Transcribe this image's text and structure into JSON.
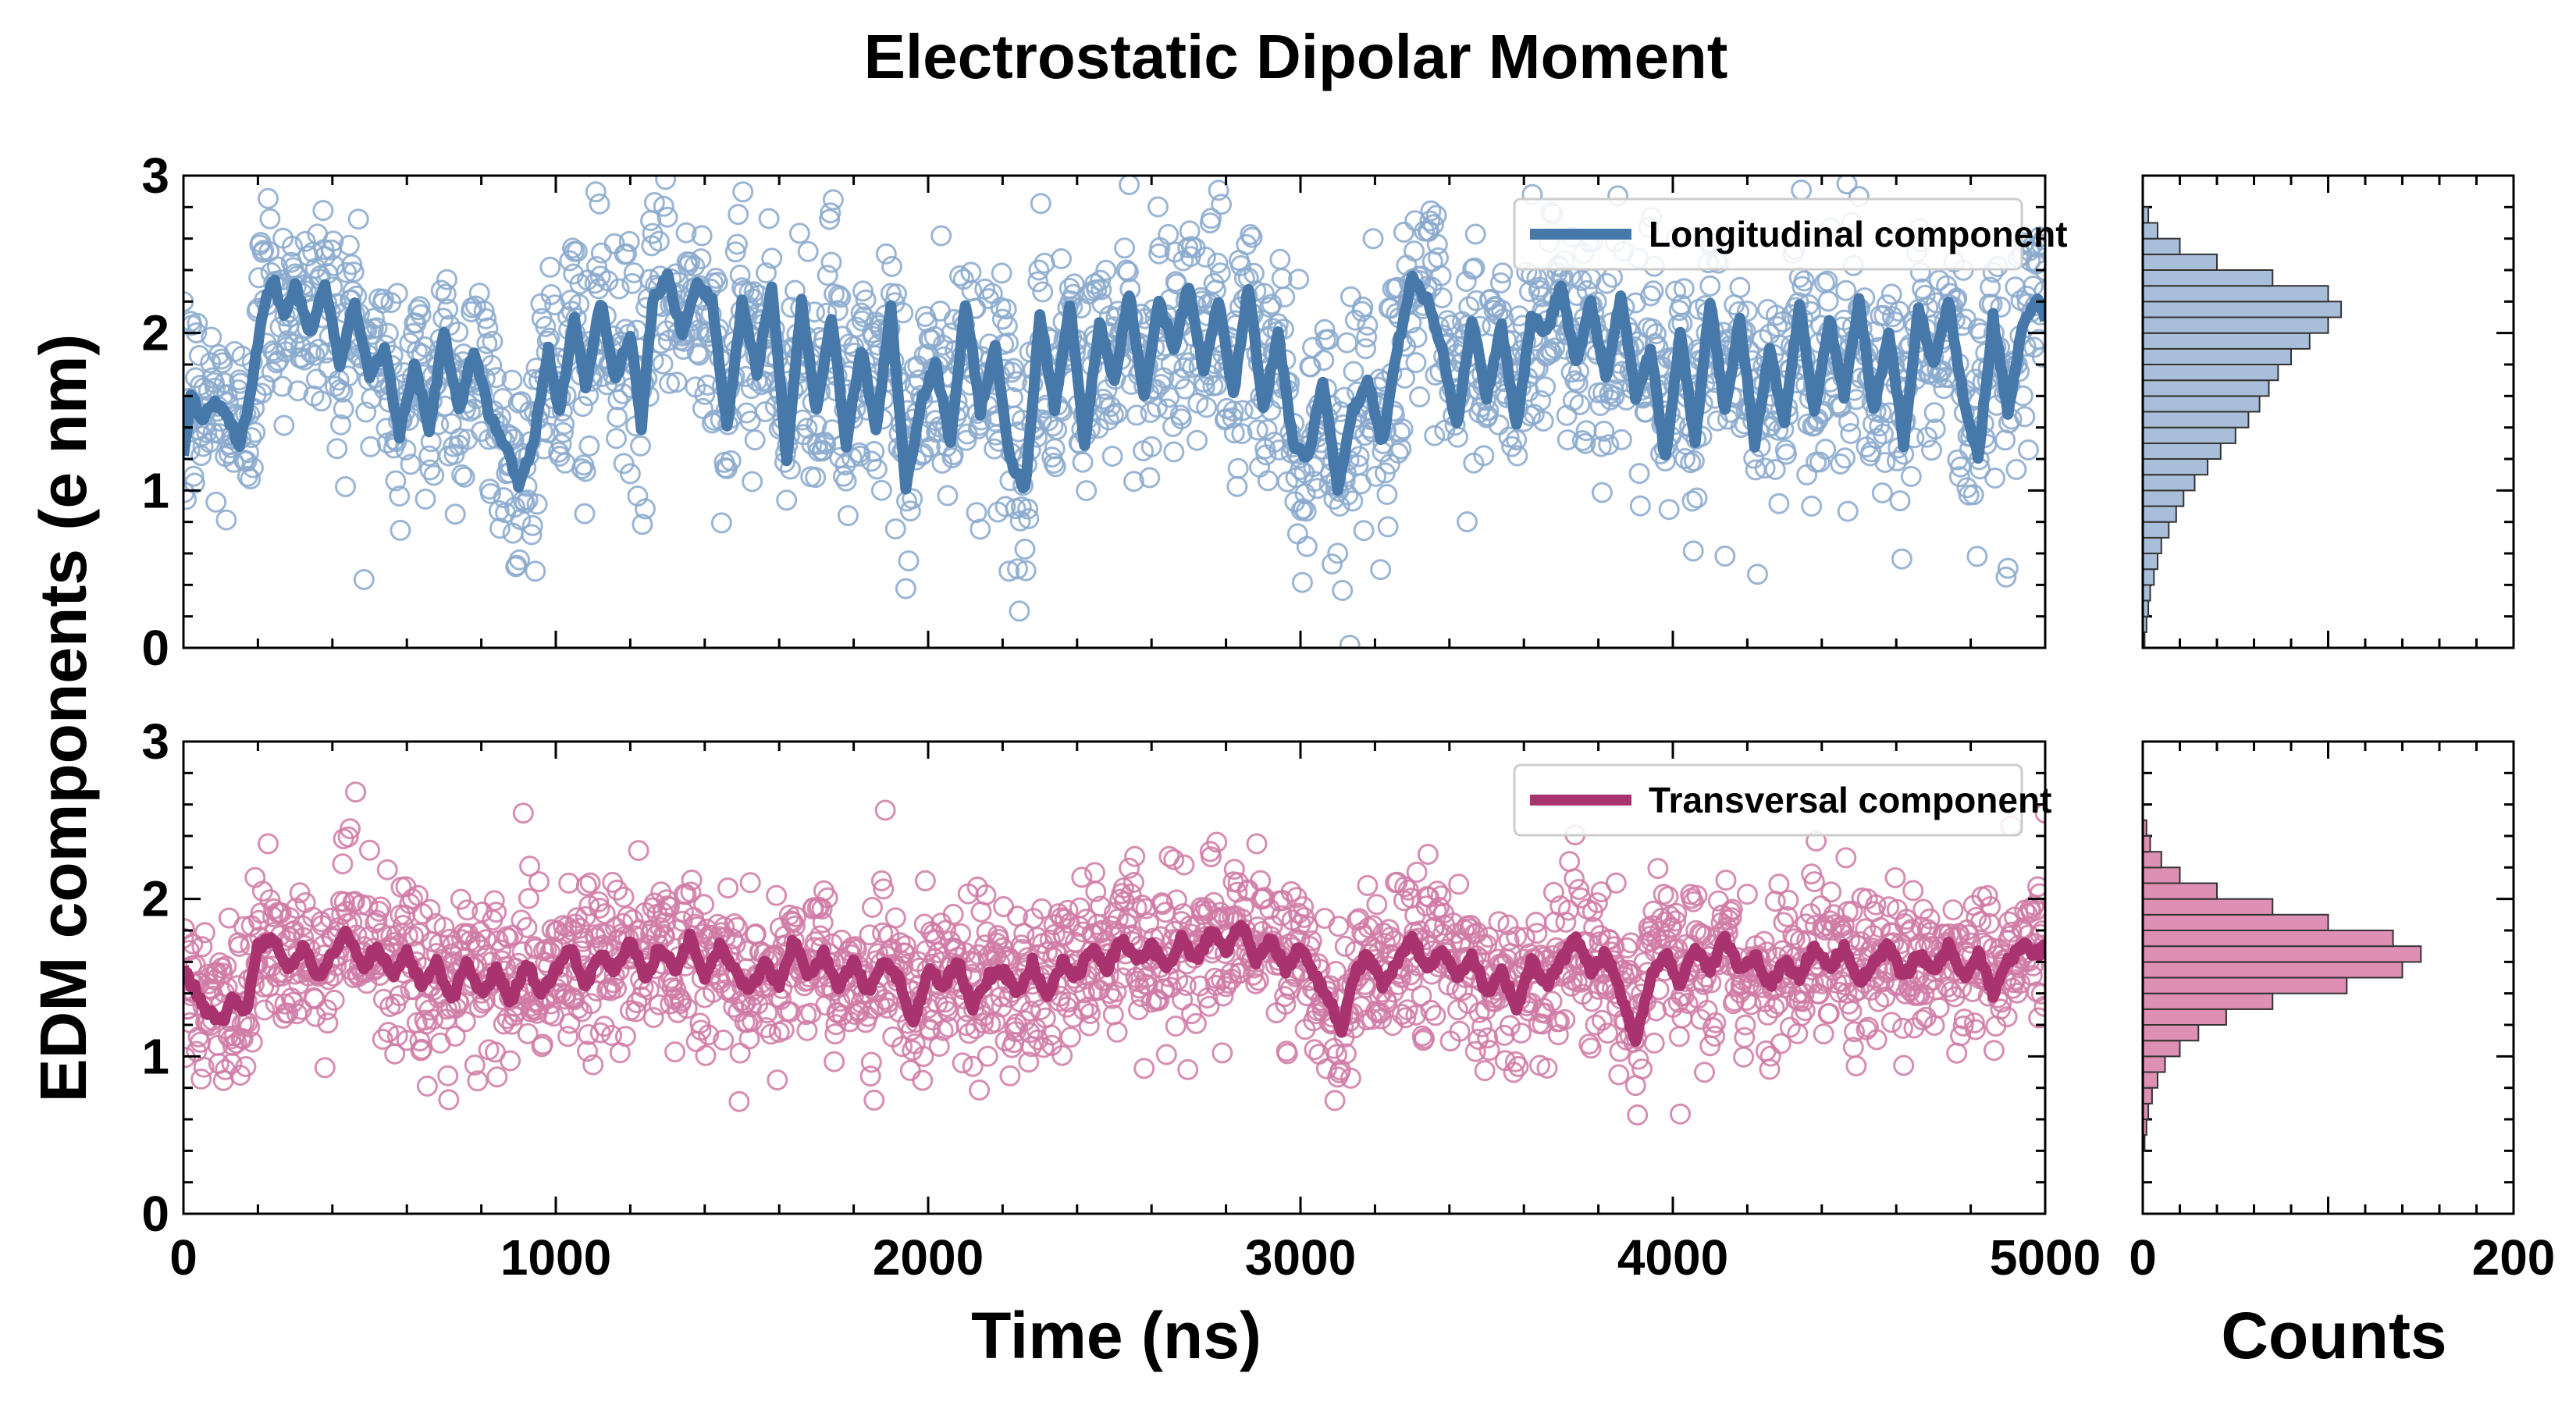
{
  "title": "Electrostatic Dipolar Moment",
  "chart_data": {
    "type": "scatter",
    "title": "Electrostatic Dipolar Moment",
    "ylabel": "EDM components (e nm)",
    "xlabel": "Time (ns)",
    "hist_xlabel": "Counts",
    "xlim": [
      0,
      5000
    ],
    "ylim": [
      0,
      3
    ],
    "hist_xlim": [
      0,
      200
    ],
    "x_ticks": [
      "0",
      "1000",
      "2000",
      "3000",
      "4000",
      "5000"
    ],
    "y_ticks": [
      "0",
      "1",
      "2",
      "3"
    ],
    "hist_ticks": [
      "0",
      "200"
    ],
    "legend_position": "top-right",
    "panels": [
      {
        "id": "longitudinal",
        "series_name": "Longitudinal component",
        "color": "#4778aa",
        "scatter_color": "#8aa9cc",
        "hist_fill": "#a9bfd9",
        "smooth_anchors": [
          [
            0,
            1.2
          ],
          [
            20,
            1.6
          ],
          [
            50,
            1.45
          ],
          [
            80,
            1.55
          ],
          [
            110,
            1.5
          ],
          [
            150,
            1.3
          ],
          [
            180,
            1.6
          ],
          [
            210,
            2.1
          ],
          [
            240,
            2.35
          ],
          [
            270,
            2.1
          ],
          [
            300,
            2.3
          ],
          [
            340,
            2.0
          ],
          [
            380,
            2.3
          ],
          [
            420,
            1.8
          ],
          [
            460,
            2.2
          ],
          [
            500,
            1.7
          ],
          [
            540,
            1.9
          ],
          [
            580,
            1.35
          ],
          [
            620,
            1.8
          ],
          [
            660,
            1.4
          ],
          [
            700,
            2.0
          ],
          [
            740,
            1.5
          ],
          [
            780,
            1.9
          ],
          [
            820,
            1.5
          ],
          [
            860,
            1.3
          ],
          [
            900,
            1.05
          ],
          [
            940,
            1.3
          ],
          [
            980,
            1.9
          ],
          [
            1010,
            1.5
          ],
          [
            1050,
            2.1
          ],
          [
            1080,
            1.65
          ],
          [
            1120,
            2.2
          ],
          [
            1160,
            1.7
          ],
          [
            1200,
            2.0
          ],
          [
            1230,
            1.4
          ],
          [
            1260,
            2.2
          ],
          [
            1300,
            2.35
          ],
          [
            1340,
            2.0
          ],
          [
            1380,
            2.3
          ],
          [
            1420,
            2.2
          ],
          [
            1460,
            1.4
          ],
          [
            1500,
            2.2
          ],
          [
            1540,
            1.75
          ],
          [
            1580,
            2.3
          ],
          [
            1620,
            1.2
          ],
          [
            1660,
            2.2
          ],
          [
            1700,
            1.5
          ],
          [
            1740,
            2.1
          ],
          [
            1780,
            1.3
          ],
          [
            1820,
            1.9
          ],
          [
            1860,
            1.4
          ],
          [
            1900,
            2.15
          ],
          [
            1940,
            1.0
          ],
          [
            1980,
            1.55
          ],
          [
            2020,
            1.8
          ],
          [
            2060,
            1.3
          ],
          [
            2100,
            2.2
          ],
          [
            2140,
            1.5
          ],
          [
            2180,
            1.9
          ],
          [
            2220,
            1.2
          ],
          [
            2260,
            1.0
          ],
          [
            2300,
            2.1
          ],
          [
            2340,
            1.5
          ],
          [
            2380,
            2.2
          ],
          [
            2420,
            1.3
          ],
          [
            2460,
            2.05
          ],
          [
            2500,
            1.7
          ],
          [
            2540,
            2.25
          ],
          [
            2580,
            1.6
          ],
          [
            2620,
            2.2
          ],
          [
            2660,
            1.9
          ],
          [
            2700,
            2.3
          ],
          [
            2740,
            1.75
          ],
          [
            2780,
            2.2
          ],
          [
            2820,
            1.6
          ],
          [
            2860,
            2.3
          ],
          [
            2900,
            1.5
          ],
          [
            2940,
            2.0
          ],
          [
            2980,
            1.3
          ],
          [
            3020,
            1.2
          ],
          [
            3060,
            1.7
          ],
          [
            3100,
            1.0
          ],
          [
            3140,
            1.5
          ],
          [
            3180,
            1.7
          ],
          [
            3220,
            1.3
          ],
          [
            3260,
            1.9
          ],
          [
            3300,
            2.35
          ],
          [
            3340,
            2.2
          ],
          [
            3380,
            1.9
          ],
          [
            3420,
            1.4
          ],
          [
            3460,
            2.1
          ],
          [
            3500,
            1.6
          ],
          [
            3540,
            2.05
          ],
          [
            3580,
            1.4
          ],
          [
            3620,
            2.1
          ],
          [
            3660,
            2.0
          ],
          [
            3700,
            2.3
          ],
          [
            3740,
            1.8
          ],
          [
            3780,
            2.2
          ],
          [
            3820,
            1.7
          ],
          [
            3860,
            2.25
          ],
          [
            3900,
            1.6
          ],
          [
            3940,
            1.9
          ],
          [
            3980,
            1.2
          ],
          [
            4020,
            2.0
          ],
          [
            4060,
            1.3
          ],
          [
            4100,
            2.2
          ],
          [
            4140,
            1.5
          ],
          [
            4180,
            2.1
          ],
          [
            4220,
            1.3
          ],
          [
            4260,
            1.9
          ],
          [
            4300,
            1.4
          ],
          [
            4340,
            2.2
          ],
          [
            4380,
            1.5
          ],
          [
            4420,
            2.1
          ],
          [
            4460,
            1.6
          ],
          [
            4500,
            2.2
          ],
          [
            4540,
            1.5
          ],
          [
            4580,
            2.0
          ],
          [
            4620,
            1.3
          ],
          [
            4660,
            2.15
          ],
          [
            4700,
            1.8
          ],
          [
            4740,
            2.2
          ],
          [
            4780,
            1.6
          ],
          [
            4820,
            1.2
          ],
          [
            4860,
            2.1
          ],
          [
            4900,
            1.5
          ],
          [
            4940,
            2.05
          ],
          [
            4980,
            2.2
          ],
          [
            5000,
            2.1
          ]
        ],
        "hist_bins": [
          {
            "y": 0.05,
            "c": 1
          },
          {
            "y": 0.15,
            "c": 2
          },
          {
            "y": 0.25,
            "c": 3
          },
          {
            "y": 0.35,
            "c": 4
          },
          {
            "y": 0.45,
            "c": 6
          },
          {
            "y": 0.55,
            "c": 8
          },
          {
            "y": 0.65,
            "c": 10
          },
          {
            "y": 0.75,
            "c": 14
          },
          {
            "y": 0.85,
            "c": 18
          },
          {
            "y": 0.95,
            "c": 22
          },
          {
            "y": 1.05,
            "c": 28
          },
          {
            "y": 1.15,
            "c": 35
          },
          {
            "y": 1.25,
            "c": 42
          },
          {
            "y": 1.35,
            "c": 50
          },
          {
            "y": 1.45,
            "c": 57
          },
          {
            "y": 1.55,
            "c": 63
          },
          {
            "y": 1.65,
            "c": 68
          },
          {
            "y": 1.75,
            "c": 73
          },
          {
            "y": 1.85,
            "c": 80
          },
          {
            "y": 1.95,
            "c": 90
          },
          {
            "y": 2.05,
            "c": 100
          },
          {
            "y": 2.15,
            "c": 107
          },
          {
            "y": 2.25,
            "c": 100
          },
          {
            "y": 2.35,
            "c": 70
          },
          {
            "y": 2.45,
            "c": 40
          },
          {
            "y": 2.55,
            "c": 20
          },
          {
            "y": 2.65,
            "c": 8
          },
          {
            "y": 2.75,
            "c": 3
          }
        ]
      },
      {
        "id": "transversal",
        "series_name": "Transversal component",
        "color": "#a8336f",
        "scatter_color": "#d07aa6",
        "hist_fill": "#dd8fb4",
        "smooth_anchors": [
          [
            0,
            1.55
          ],
          [
            25,
            1.45
          ],
          [
            60,
            1.3
          ],
          [
            100,
            1.2
          ],
          [
            130,
            1.35
          ],
          [
            170,
            1.3
          ],
          [
            200,
            1.7
          ],
          [
            240,
            1.75
          ],
          [
            280,
            1.55
          ],
          [
            320,
            1.7
          ],
          [
            360,
            1.5
          ],
          [
            400,
            1.65
          ],
          [
            440,
            1.8
          ],
          [
            480,
            1.55
          ],
          [
            520,
            1.7
          ],
          [
            560,
            1.5
          ],
          [
            600,
            1.65
          ],
          [
            640,
            1.45
          ],
          [
            680,
            1.6
          ],
          [
            720,
            1.35
          ],
          [
            760,
            1.6
          ],
          [
            800,
            1.4
          ],
          [
            840,
            1.55
          ],
          [
            880,
            1.35
          ],
          [
            920,
            1.6
          ],
          [
            960,
            1.4
          ],
          [
            1000,
            1.55
          ],
          [
            1040,
            1.7
          ],
          [
            1080,
            1.45
          ],
          [
            1120,
            1.65
          ],
          [
            1160,
            1.55
          ],
          [
            1200,
            1.75
          ],
          [
            1240,
            1.5
          ],
          [
            1280,
            1.7
          ],
          [
            1320,
            1.55
          ],
          [
            1360,
            1.75
          ],
          [
            1400,
            1.5
          ],
          [
            1440,
            1.7
          ],
          [
            1480,
            1.55
          ],
          [
            1520,
            1.4
          ],
          [
            1560,
            1.6
          ],
          [
            1600,
            1.45
          ],
          [
            1640,
            1.75
          ],
          [
            1680,
            1.5
          ],
          [
            1720,
            1.65
          ],
          [
            1760,
            1.45
          ],
          [
            1800,
            1.6
          ],
          [
            1840,
            1.4
          ],
          [
            1880,
            1.6
          ],
          [
            1920,
            1.5
          ],
          [
            1960,
            1.2
          ],
          [
            2000,
            1.55
          ],
          [
            2040,
            1.45
          ],
          [
            2080,
            1.6
          ],
          [
            2120,
            1.3
          ],
          [
            2160,
            1.5
          ],
          [
            2200,
            1.55
          ],
          [
            2240,
            1.4
          ],
          [
            2280,
            1.6
          ],
          [
            2320,
            1.35
          ],
          [
            2360,
            1.6
          ],
          [
            2400,
            1.5
          ],
          [
            2440,
            1.7
          ],
          [
            2480,
            1.55
          ],
          [
            2520,
            1.75
          ],
          [
            2560,
            1.6
          ],
          [
            2600,
            1.7
          ],
          [
            2640,
            1.55
          ],
          [
            2680,
            1.75
          ],
          [
            2720,
            1.6
          ],
          [
            2760,
            1.8
          ],
          [
            2800,
            1.65
          ],
          [
            2840,
            1.85
          ],
          [
            2880,
            1.6
          ],
          [
            2920,
            1.75
          ],
          [
            2960,
            1.55
          ],
          [
            3000,
            1.7
          ],
          [
            3040,
            1.5
          ],
          [
            3080,
            1.35
          ],
          [
            3110,
            1.15
          ],
          [
            3140,
            1.5
          ],
          [
            3180,
            1.65
          ],
          [
            3220,
            1.45
          ],
          [
            3260,
            1.6
          ],
          [
            3300,
            1.75
          ],
          [
            3340,
            1.55
          ],
          [
            3380,
            1.7
          ],
          [
            3420,
            1.5
          ],
          [
            3460,
            1.65
          ],
          [
            3500,
            1.4
          ],
          [
            3540,
            1.55
          ],
          [
            3580,
            1.3
          ],
          [
            3620,
            1.6
          ],
          [
            3660,
            1.45
          ],
          [
            3700,
            1.6
          ],
          [
            3740,
            1.75
          ],
          [
            3780,
            1.55
          ],
          [
            3820,
            1.65
          ],
          [
            3860,
            1.4
          ],
          [
            3900,
            1.1
          ],
          [
            3940,
            1.5
          ],
          [
            3980,
            1.65
          ],
          [
            4020,
            1.45
          ],
          [
            4060,
            1.7
          ],
          [
            4100,
            1.55
          ],
          [
            4140,
            1.75
          ],
          [
            4180,
            1.55
          ],
          [
            4220,
            1.65
          ],
          [
            4260,
            1.45
          ],
          [
            4300,
            1.6
          ],
          [
            4340,
            1.5
          ],
          [
            4380,
            1.7
          ],
          [
            4420,
            1.55
          ],
          [
            4460,
            1.7
          ],
          [
            4500,
            1.45
          ],
          [
            4540,
            1.6
          ],
          [
            4580,
            1.7
          ],
          [
            4620,
            1.5
          ],
          [
            4660,
            1.65
          ],
          [
            4700,
            1.55
          ],
          [
            4740,
            1.7
          ],
          [
            4780,
            1.5
          ],
          [
            4820,
            1.65
          ],
          [
            4860,
            1.4
          ],
          [
            4900,
            1.6
          ],
          [
            4940,
            1.7
          ],
          [
            4980,
            1.65
          ],
          [
            5000,
            1.7
          ]
        ],
        "hist_bins": [
          {
            "y": 0.45,
            "c": 1
          },
          {
            "y": 0.55,
            "c": 2
          },
          {
            "y": 0.65,
            "c": 3
          },
          {
            "y": 0.75,
            "c": 5
          },
          {
            "y": 0.85,
            "c": 8
          },
          {
            "y": 0.95,
            "c": 12
          },
          {
            "y": 1.05,
            "c": 20
          },
          {
            "y": 1.15,
            "c": 30
          },
          {
            "y": 1.25,
            "c": 45
          },
          {
            "y": 1.35,
            "c": 70
          },
          {
            "y": 1.45,
            "c": 110
          },
          {
            "y": 1.55,
            "c": 140
          },
          {
            "y": 1.65,
            "c": 150
          },
          {
            "y": 1.75,
            "c": 135
          },
          {
            "y": 1.85,
            "c": 100
          },
          {
            "y": 1.95,
            "c": 70
          },
          {
            "y": 2.05,
            "c": 40
          },
          {
            "y": 2.15,
            "c": 20
          },
          {
            "y": 2.25,
            "c": 10
          },
          {
            "y": 2.35,
            "c": 4
          },
          {
            "y": 2.45,
            "c": 2
          }
        ]
      }
    ]
  }
}
